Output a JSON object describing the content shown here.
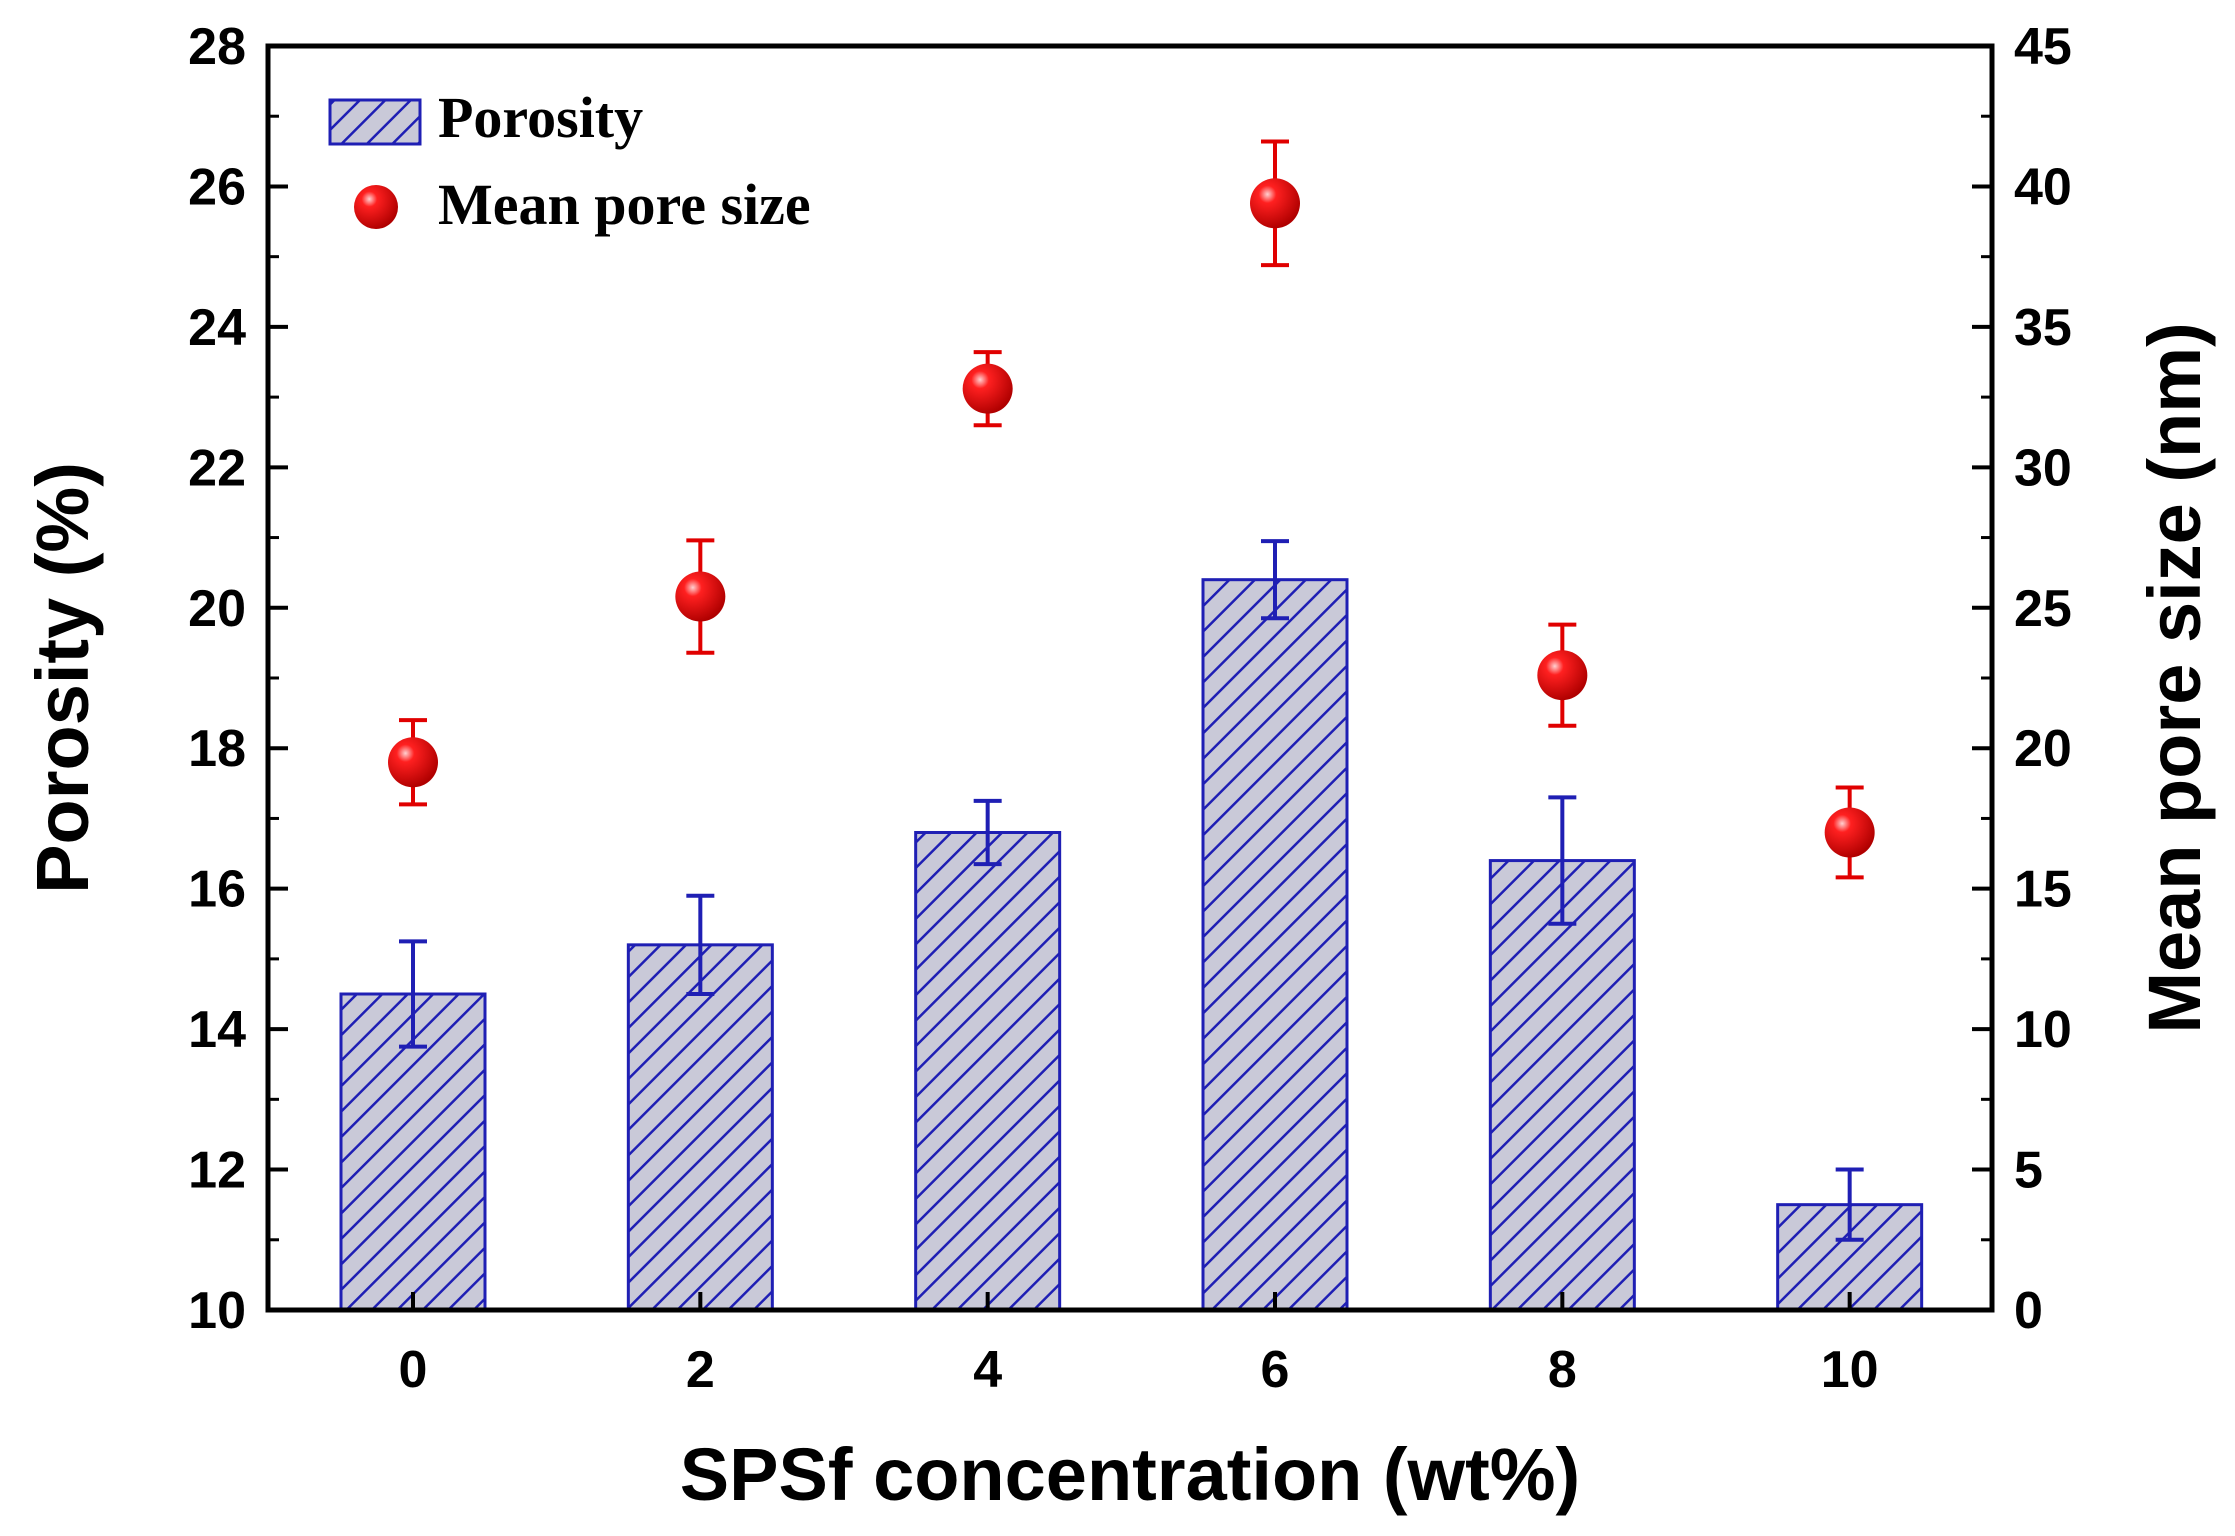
{
  "chart_data": {
    "type": "bar",
    "categories": [
      "0",
      "2",
      "4",
      "6",
      "8",
      "10"
    ],
    "xlabel": "SPSf concentration (wt%)",
    "ylabel": "Porosity (%)",
    "y2label": "Mean pore size (nm)",
    "ylim": [
      10,
      28
    ],
    "y2lim": [
      0,
      45
    ],
    "yticks": [
      "10",
      "12",
      "14",
      "16",
      "18",
      "20",
      "22",
      "24",
      "26",
      "28"
    ],
    "y2ticks": [
      "0",
      "5",
      "10",
      "15",
      "20",
      "25",
      "30",
      "35",
      "40",
      "45"
    ],
    "legend_position": "top-left",
    "series": [
      {
        "name": "Porosity",
        "kind": "bar",
        "axis": "left",
        "color": "#1f1fb4",
        "fill": "#c9c9d8",
        "values": [
          14.5,
          15.2,
          16.8,
          20.4,
          16.4,
          11.5
        ],
        "errors": [
          0.75,
          0.7,
          0.45,
          0.55,
          0.9,
          0.5
        ]
      },
      {
        "name": "Mean pore size",
        "kind": "scatter",
        "axis": "right",
        "color": "#e00000",
        "values": [
          19.5,
          25.4,
          32.8,
          39.4,
          22.6,
          17.0
        ],
        "errors": [
          1.5,
          2.0,
          1.3,
          2.2,
          1.8,
          1.6
        ]
      }
    ]
  }
}
